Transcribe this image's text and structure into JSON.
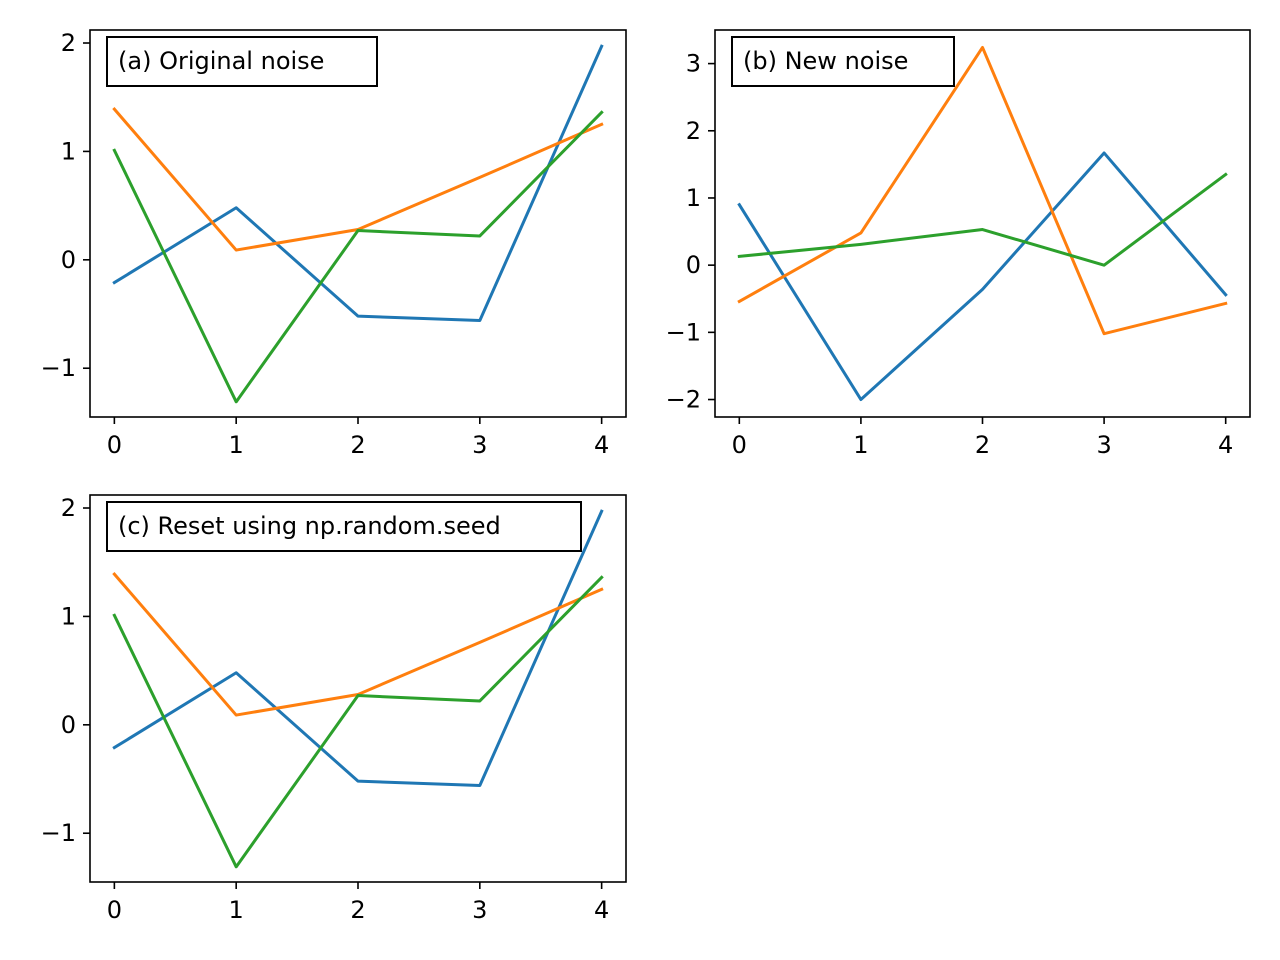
{
  "chart_data": [
    {
      "type": "line",
      "annotation": "(a)  Original noise",
      "x": [
        0,
        1,
        2,
        3,
        4
      ],
      "xticks": [
        0,
        1,
        2,
        3,
        4
      ],
      "yticks": [
        -1,
        0,
        1,
        2
      ],
      "xlim": [
        -0.2,
        4.2
      ],
      "ylim": [
        -1.45,
        2.12
      ],
      "series": [
        {
          "color": "#1f77b4",
          "values": [
            -0.21,
            0.48,
            -0.52,
            -0.56,
            1.97
          ]
        },
        {
          "color": "#ff7f0e",
          "values": [
            1.39,
            0.09,
            0.28,
            0.76,
            1.25
          ]
        },
        {
          "color": "#2ca02c",
          "values": [
            1.01,
            -1.31,
            0.27,
            0.22,
            1.36
          ]
        }
      ]
    },
    {
      "type": "line",
      "annotation": "(b)  New noise",
      "x": [
        0,
        1,
        2,
        3,
        4
      ],
      "xticks": [
        0,
        1,
        2,
        3,
        4
      ],
      "yticks": [
        -2,
        -1,
        0,
        1,
        2,
        3
      ],
      "xlim": [
        -0.2,
        4.2
      ],
      "ylim": [
        -2.26,
        3.5
      ],
      "series": [
        {
          "color": "#1f77b4",
          "values": [
            0.9,
            -2.0,
            -0.36,
            1.67,
            -0.44
          ]
        },
        {
          "color": "#ff7f0e",
          "values": [
            -0.54,
            0.48,
            3.24,
            -1.02,
            -0.57
          ]
        },
        {
          "color": "#2ca02c",
          "values": [
            0.13,
            0.31,
            0.53,
            0.0,
            1.35
          ]
        }
      ]
    },
    {
      "type": "line",
      "annotation": "(c)  Reset using np.random.seed",
      "x": [
        0,
        1,
        2,
        3,
        4
      ],
      "xticks": [
        0,
        1,
        2,
        3,
        4
      ],
      "yticks": [
        -1,
        0,
        1,
        2
      ],
      "xlim": [
        -0.2,
        4.2
      ],
      "ylim": [
        -1.45,
        2.12
      ],
      "series": [
        {
          "color": "#1f77b4",
          "values": [
            -0.21,
            0.48,
            -0.52,
            -0.56,
            1.97
          ]
        },
        {
          "color": "#ff7f0e",
          "values": [
            1.39,
            0.09,
            0.28,
            0.76,
            1.25
          ]
        },
        {
          "color": "#2ca02c",
          "values": [
            1.01,
            -1.31,
            0.27,
            0.22,
            1.36
          ]
        }
      ]
    }
  ]
}
